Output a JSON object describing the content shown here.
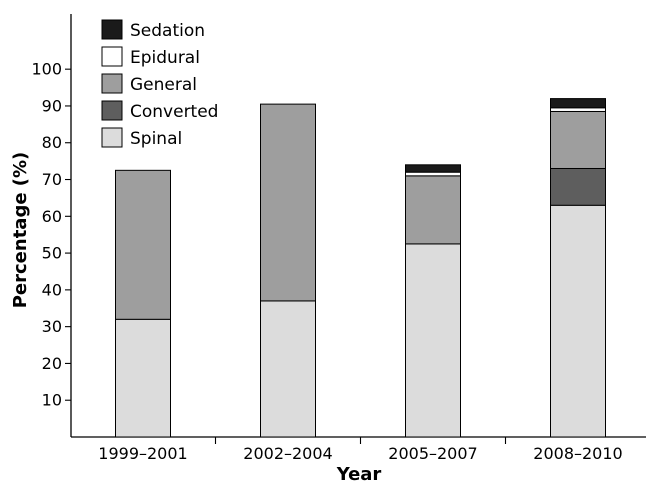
{
  "chart_data": {
    "type": "bar",
    "stacked": true,
    "title": "",
    "xlabel": "Year",
    "ylabel": "Percentage (%)",
    "ylim": [
      0,
      115
    ],
    "yticks": [
      10,
      20,
      30,
      40,
      50,
      60,
      70,
      80,
      90,
      100
    ],
    "grid": false,
    "legend_position": "top-left",
    "categories": [
      "1999–2001",
      "2002–2004",
      "2005–2007",
      "2008–2010"
    ],
    "series": [
      {
        "name": "Spinal",
        "color": "#dcdcdc",
        "values": [
          32,
          37,
          52.5,
          63
        ]
      },
      {
        "name": "Converted",
        "color": "#5e5e5e",
        "values": [
          0,
          0,
          0,
          10
        ]
      },
      {
        "name": "General",
        "color": "#9e9e9e",
        "values": [
          40.5,
          53.5,
          18.5,
          15.5
        ]
      },
      {
        "name": "Epidural",
        "color": "#ffffff",
        "values": [
          0,
          0,
          1,
          1
        ]
      },
      {
        "name": "Sedation",
        "color": "#1a1a1a",
        "values": [
          0,
          0,
          2,
          2.5
        ]
      }
    ],
    "legend_order": [
      "Sedation",
      "Epidural",
      "General",
      "Converted",
      "Spinal"
    ]
  }
}
